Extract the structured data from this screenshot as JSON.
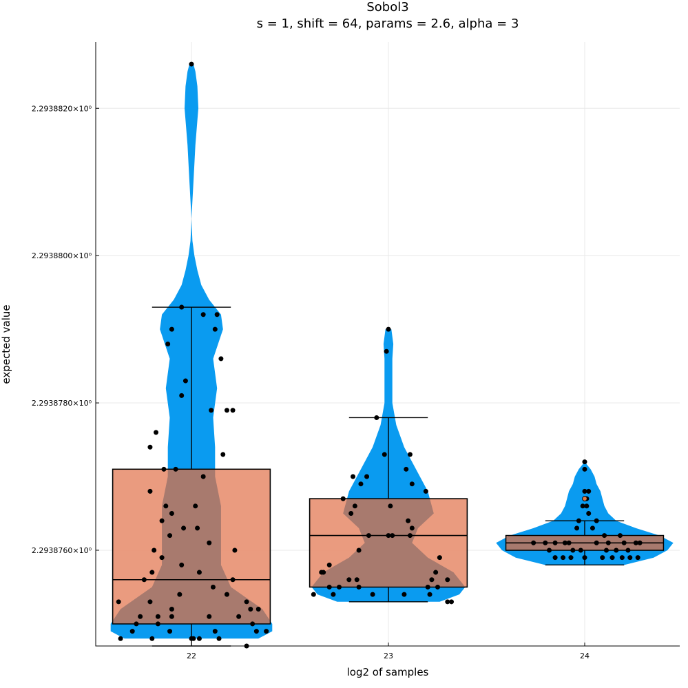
{
  "chart_data": {
    "type": "violin+box+scatter",
    "title": "Sobol3",
    "subtitle": "s = 1, shift = 64, params = 2.6, alpha = 3",
    "xlabel": "log2 of samples",
    "ylabel": "expected value",
    "x_categories": [
      "22",
      "23",
      "24"
    ],
    "ylim": [
      2.2938747,
      2.2938829
    ],
    "y_ticks": [
      {
        "value": 2.293876,
        "label": "2.2938760×10⁰"
      },
      {
        "value": 2.293878,
        "label": "2.2938780×10⁰"
      },
      {
        "value": 2.29388,
        "label": "2.2938800×10⁰"
      },
      {
        "value": 2.293882,
        "label": "2.2938820×10⁰"
      }
    ],
    "grid": true,
    "legend": "none",
    "colors": {
      "violin": "#0a9bf0",
      "box": "#e89274",
      "box_overlap": "#a87a6e",
      "points": "#000000",
      "outlier": "#e67e45"
    },
    "groups": [
      {
        "x": "22",
        "box": {
          "whisker_low": 2.2938747,
          "q1": 2.293875,
          "median": 2.2938756,
          "q3": 2.2938771,
          "whisker_high": 2.2938793
        },
        "violin": {
          "y": [
            2.2938748,
            2.2938749,
            2.293875,
            2.2938752,
            2.2938755,
            2.2938758,
            2.2938762,
            2.2938766,
            2.293877,
            2.2938774,
            2.2938778,
            2.2938782,
            2.2938786,
            2.293879,
            2.2938792,
            2.2938794,
            2.2938796,
            2.2938798,
            2.29388,
            2.2938802,
            2.2938805,
            2.293881,
            2.2938815,
            2.293882,
            2.2938823,
            2.2938825,
            2.2938826
          ],
          "w": [
            0.34,
            0.41,
            0.41,
            0.36,
            0.2,
            0.15,
            0.15,
            0.15,
            0.12,
            0.12,
            0.11,
            0.13,
            0.11,
            0.16,
            0.15,
            0.09,
            0.05,
            0.03,
            0.015,
            0.005,
            0.0,
            0.01,
            0.02,
            0.035,
            0.03,
            0.02,
            0.01
          ]
        },
        "points": [
          2.2938826,
          2.2938793,
          2.2938792,
          2.2938792,
          2.293879,
          2.293879,
          2.2938788,
          2.2938786,
          2.2938783,
          2.2938781,
          2.2938779,
          2.2938779,
          2.2938779,
          2.2938776,
          2.2938774,
          2.2938773,
          2.2938771,
          2.2938771,
          2.293877,
          2.2938768,
          2.2938766,
          2.2938766,
          2.2938765,
          2.2938764,
          2.2938763,
          2.2938763,
          2.2938762,
          2.2938761,
          2.293876,
          2.293876,
          2.2938759,
          2.2938758,
          2.2938757,
          2.2938757,
          2.2938756,
          2.2938756,
          2.2938755,
          2.2938754,
          2.2938754,
          2.2938753,
          2.2938753,
          2.2938753,
          2.2938752,
          2.2938752,
          2.2938752,
          2.2938751,
          2.2938751,
          2.2938751,
          2.2938751,
          2.2938751,
          2.293875,
          2.293875,
          2.293875,
          2.2938749,
          2.2938749,
          2.2938749,
          2.2938749,
          2.2938749,
          2.2938748,
          2.2938748,
          2.2938748,
          2.2938748,
          2.2938748,
          2.2938748,
          2.2938747
        ],
        "jitter": [
          0.0,
          -0.05,
          0.13,
          0.06,
          -0.1,
          0.12,
          -0.12,
          0.15,
          -0.03,
          -0.05,
          0.1,
          0.18,
          0.21,
          -0.18,
          -0.21,
          0.16,
          -0.08,
          -0.14,
          0.06,
          -0.21,
          0.02,
          -0.13,
          -0.1,
          -0.15,
          0.03,
          -0.04,
          -0.11,
          0.09,
          -0.19,
          0.22,
          -0.15,
          -0.05,
          -0.2,
          0.04,
          0.21,
          -0.24,
          0.11,
          -0.06,
          0.18,
          -0.21,
          -0.37,
          0.28,
          -0.1,
          0.3,
          0.34,
          -0.17,
          -0.26,
          -0.1,
          0.09,
          0.24,
          0.31,
          -0.28,
          -0.17,
          0.33,
          0.38,
          -0.3,
          0.12,
          -0.11,
          0.01,
          0.04,
          -0.36,
          -0.2,
          0.14,
          0.0,
          0.28
        ]
      },
      {
        "x": "23",
        "box": {
          "whisker_low": 2.2938753,
          "q1": 2.2938755,
          "median": 2.2938762,
          "q3": 2.2938767,
          "whisker_high": 2.2938778
        },
        "violin": {
          "y": [
            2.2938753,
            2.2938754,
            2.2938755,
            2.2938757,
            2.2938759,
            2.2938761,
            2.2938763,
            2.2938765,
            2.2938768,
            2.2938771,
            2.2938774,
            2.2938777,
            2.293878,
            2.2938783,
            2.2938786,
            2.2938788,
            2.293879,
            2.293879
          ],
          "w": [
            0.26,
            0.36,
            0.39,
            0.33,
            0.2,
            0.12,
            0.15,
            0.23,
            0.2,
            0.14,
            0.08,
            0.04,
            0.02,
            0.02,
            0.02,
            0.025,
            0.015,
            0.0
          ]
        },
        "points": [
          2.293879,
          2.2938787,
          2.2938778,
          2.2938773,
          2.2938773,
          2.2938771,
          2.293877,
          2.293877,
          2.2938769,
          2.2938769,
          2.2938768,
          2.2938767,
          2.2938766,
          2.2938766,
          2.2938765,
          2.2938764,
          2.2938763,
          2.2938762,
          2.2938762,
          2.2938762,
          2.2938762,
          2.293876,
          2.2938759,
          2.2938758,
          2.2938757,
          2.2938757,
          2.2938757,
          2.2938756,
          2.2938756,
          2.2938756,
          2.2938756,
          2.2938755,
          2.2938755,
          2.2938755,
          2.2938755,
          2.2938755,
          2.2938754,
          2.2938754,
          2.2938754,
          2.2938754,
          2.2938754,
          2.2938753,
          2.2938753
        ],
        "jitter": [
          0.0,
          -0.01,
          -0.06,
          -0.02,
          0.11,
          0.09,
          -0.18,
          -0.11,
          0.12,
          -0.14,
          0.19,
          -0.23,
          0.01,
          -0.17,
          -0.19,
          0.1,
          0.12,
          -0.1,
          0.0,
          0.02,
          0.11,
          -0.15,
          0.26,
          -0.3,
          -0.34,
          0.24,
          -0.33,
          -0.16,
          0.3,
          0.22,
          -0.2,
          -0.3,
          -0.25,
          -0.15,
          0.2,
          0.25,
          -0.28,
          -0.08,
          0.08,
          0.21,
          -0.38,
          0.3,
          0.32
        ]
      },
      {
        "x": "24",
        "box": {
          "whisker_low": 2.2938758,
          "q1": 2.293876,
          "median": 2.2938761,
          "q3": 2.2938762,
          "whisker_high": 2.2938764
        },
        "violin": {
          "y": [
            2.2938758,
            2.2938759,
            2.293876,
            2.2938761,
            2.2938762,
            2.2938763,
            2.2938764,
            2.2938765,
            2.2938766,
            2.2938767,
            2.2938768,
            2.2938769,
            2.293877,
            2.2938771,
            2.2938772
          ],
          "w": [
            0.2,
            0.35,
            0.42,
            0.45,
            0.38,
            0.26,
            0.16,
            0.12,
            0.1,
            0.09,
            0.08,
            0.06,
            0.05,
            0.03,
            0.0
          ]
        },
        "points": [
          2.2938772,
          2.2938771,
          2.2938768,
          2.2938768,
          2.2938767,
          2.2938766,
          2.2938766,
          2.2938765,
          2.2938764,
          2.2938764,
          2.2938763,
          2.2938763,
          2.2938762,
          2.2938762,
          2.2938761,
          2.2938761,
          2.2938761,
          2.2938761,
          2.2938761,
          2.2938761,
          2.2938761,
          2.2938761,
          2.2938761,
          2.2938761,
          2.293876,
          2.293876,
          2.293876,
          2.293876,
          2.293876,
          2.293876,
          2.2938759,
          2.2938759,
          2.2938759,
          2.2938759,
          2.2938759,
          2.2938759,
          2.2938759,
          2.2938759,
          2.2938759
        ],
        "jitter": [
          0.0,
          0.0,
          0.0,
          0.02,
          0.01,
          0.01,
          -0.01,
          0.02,
          -0.03,
          0.06,
          0.04,
          -0.04,
          0.1,
          0.18,
          -0.26,
          -0.2,
          -0.15,
          -0.08,
          0.06,
          0.12,
          0.2,
          0.26,
          0.28,
          -0.1,
          -0.06,
          -0.02,
          0.11,
          0.16,
          -0.18,
          0.22,
          -0.15,
          -0.07,
          0.0,
          0.09,
          0.14,
          0.19,
          0.23,
          0.27,
          -0.11
        ],
        "outliers": [
          2.2938767
        ]
      }
    ]
  }
}
